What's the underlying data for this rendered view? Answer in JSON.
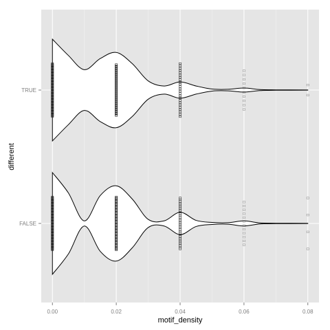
{
  "chart_data": {
    "type": "violin",
    "orientation": "horizontal",
    "xlabel": "motif_density",
    "ylabel": "different",
    "xlim": [
      -0.0035,
      0.0835
    ],
    "x_ticks": [
      0.0,
      0.02,
      0.04,
      0.06,
      0.08
    ],
    "x_tick_labels": [
      "0.00",
      "0.02",
      "0.04",
      "0.06",
      "0.08"
    ],
    "categories": [
      "TRUE",
      "FALSE"
    ],
    "grid": true,
    "colors": {
      "panel_bg": "#e5e5e5",
      "grid_major": "#ffffff",
      "grid_minor": "#f2f2f2",
      "violin_fill": "#ffffff",
      "violin_outline": "#000000",
      "points": "#000000"
    },
    "violins": [
      {
        "group": "TRUE",
        "density_profile": [
          [
            0.0,
            1.0
          ],
          [
            0.005,
            0.68
          ],
          [
            0.01,
            0.4
          ],
          [
            0.015,
            0.62
          ],
          [
            0.02,
            0.74
          ],
          [
            0.025,
            0.52
          ],
          [
            0.03,
            0.18
          ],
          [
            0.035,
            0.08
          ],
          [
            0.04,
            0.16
          ],
          [
            0.045,
            0.08
          ],
          [
            0.05,
            0.02
          ],
          [
            0.055,
            0.015
          ],
          [
            0.06,
            0.04
          ],
          [
            0.065,
            0.01
          ],
          [
            0.07,
            0.004
          ],
          [
            0.08,
            0.002
          ]
        ]
      },
      {
        "group": "FALSE",
        "density_profile": [
          [
            0.0,
            1.0
          ],
          [
            0.005,
            0.6
          ],
          [
            0.01,
            0.05
          ],
          [
            0.015,
            0.55
          ],
          [
            0.02,
            0.74
          ],
          [
            0.025,
            0.48
          ],
          [
            0.03,
            0.08
          ],
          [
            0.035,
            0.05
          ],
          [
            0.04,
            0.22
          ],
          [
            0.045,
            0.06
          ],
          [
            0.05,
            0.02
          ],
          [
            0.055,
            0.015
          ],
          [
            0.06,
            0.05
          ],
          [
            0.065,
            0.01
          ],
          [
            0.07,
            0.004
          ],
          [
            0.08,
            0.002
          ]
        ]
      }
    ],
    "points": [
      {
        "group": "TRUE",
        "x": 0.0,
        "spread": 0.52,
        "count": 60
      },
      {
        "group": "TRUE",
        "x": 0.02,
        "spread": 0.5,
        "count": 50
      },
      {
        "group": "TRUE",
        "x": 0.04,
        "spread": 0.52,
        "count": 24
      },
      {
        "group": "TRUE",
        "x": 0.06,
        "spread": 0.38,
        "count": 10
      },
      {
        "group": "TRUE",
        "x": 0.08,
        "spread": 0.1,
        "count": 2
      },
      {
        "group": "FALSE",
        "x": 0.0,
        "spread": 0.52,
        "count": 60
      },
      {
        "group": "FALSE",
        "x": 0.02,
        "spread": 0.52,
        "count": 60
      },
      {
        "group": "FALSE",
        "x": 0.04,
        "spread": 0.5,
        "count": 30
      },
      {
        "group": "FALSE",
        "x": 0.06,
        "spread": 0.42,
        "count": 12
      },
      {
        "group": "FALSE",
        "x": 0.08,
        "spread": 0.5,
        "count": 4
      }
    ]
  }
}
